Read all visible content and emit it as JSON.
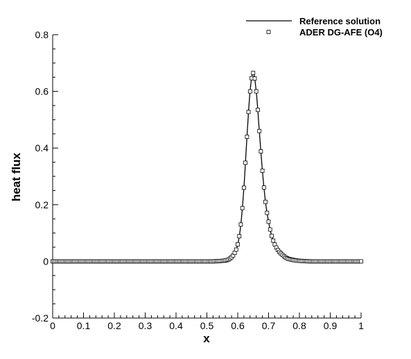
{
  "chart_data": {
    "type": "line",
    "title": "",
    "xlabel": "x",
    "ylabel": "heat flux",
    "xlim": [
      0,
      1
    ],
    "ylim": [
      -0.2,
      0.8
    ],
    "x_ticks": [
      0,
      0.1,
      0.2,
      0.3,
      0.4,
      0.5,
      0.6,
      0.7,
      0.8,
      0.9,
      1
    ],
    "x_tick_labels": [
      "0",
      "0.1",
      "0.2",
      "0.3",
      "0.4",
      "0.5",
      "0.6",
      "0.7",
      "0.8",
      "0.9",
      "1"
    ],
    "y_ticks": [
      -0.2,
      0,
      0.2,
      0.4,
      0.6,
      0.8
    ],
    "y_tick_labels": [
      "-0.2",
      "0",
      "0.2",
      "0.4",
      "0.6",
      "0.8"
    ],
    "grid": false,
    "legend_position": "top-right",
    "series": [
      {
        "name": "Reference solution",
        "style": "line",
        "color": "#000000",
        "x": [
          0,
          0.5,
          0.55,
          0.575,
          0.59,
          0.6,
          0.61,
          0.62,
          0.63,
          0.64,
          0.65,
          0.66,
          0.67,
          0.68,
          0.69,
          0.7,
          0.71,
          0.72,
          0.73,
          0.74,
          0.75,
          0.76,
          0.78,
          0.8,
          0.85,
          0.9,
          1
        ],
        "y": [
          0,
          0,
          0.002,
          0.01,
          0.03,
          0.06,
          0.13,
          0.26,
          0.44,
          0.6,
          0.665,
          0.6,
          0.46,
          0.32,
          0.21,
          0.14,
          0.09,
          0.06,
          0.04,
          0.028,
          0.018,
          0.011,
          0.005,
          0.002,
          0,
          0,
          0
        ]
      },
      {
        "name": "ADER DG-AFE (O4)",
        "style": "markers",
        "marker": "square",
        "color": "#000000",
        "x_start": 0,
        "x_end": 1,
        "x_step": 0.005
      }
    ]
  }
}
